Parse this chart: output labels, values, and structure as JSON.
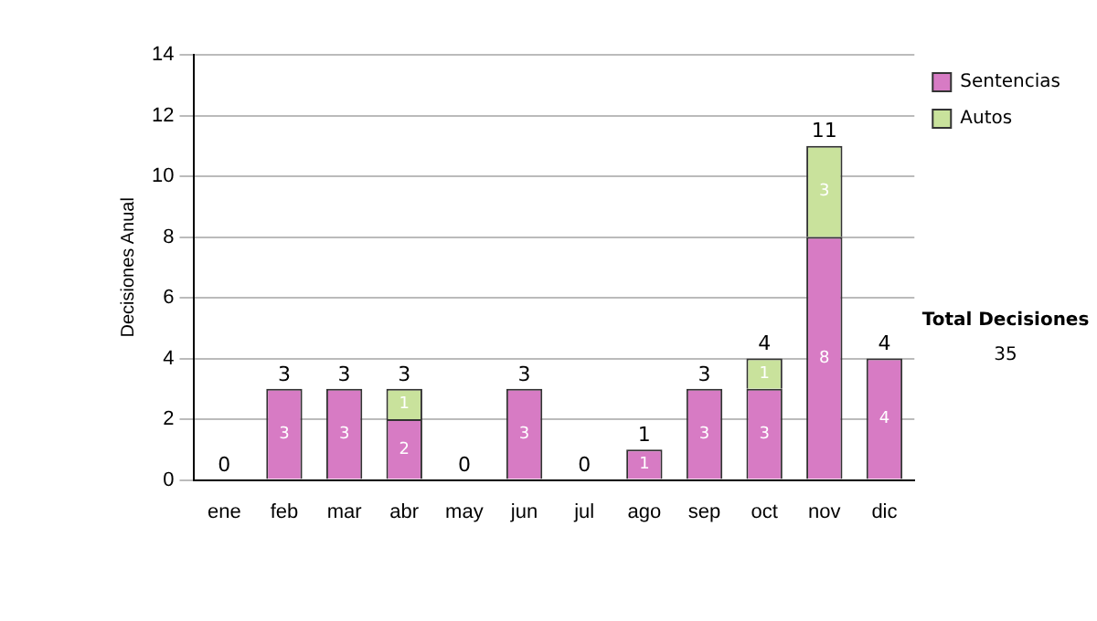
{
  "chart_data": {
    "type": "bar",
    "stacked": true,
    "ylabel": "Decisiones Anual",
    "categories": [
      "ene",
      "feb",
      "mar",
      "abr",
      "may",
      "jun",
      "jul",
      "ago",
      "sep",
      "oct",
      "nov",
      "dic"
    ],
    "series": [
      {
        "name": "Sentencias",
        "color": "#d77bc4",
        "values": [
          null,
          3,
          3,
          2,
          null,
          3,
          null,
          1,
          3,
          3,
          8,
          4
        ]
      },
      {
        "name": "Autos",
        "color": "#c9e29c",
        "values": [
          null,
          null,
          null,
          1,
          null,
          null,
          null,
          null,
          null,
          1,
          3,
          null
        ]
      }
    ],
    "totals": [
      "0",
      "3",
      "3",
      "3",
      "0",
      "3",
      "0",
      "1",
      "3",
      "4",
      "11",
      "4"
    ],
    "data_labels": true,
    "ylim": [
      0,
      14
    ],
    "yticks": [
      0,
      2,
      4,
      6,
      8,
      10,
      12,
      14
    ],
    "grid": "y",
    "legend": "right",
    "annotations": [
      "Total Decisiones",
      "35"
    ]
  }
}
